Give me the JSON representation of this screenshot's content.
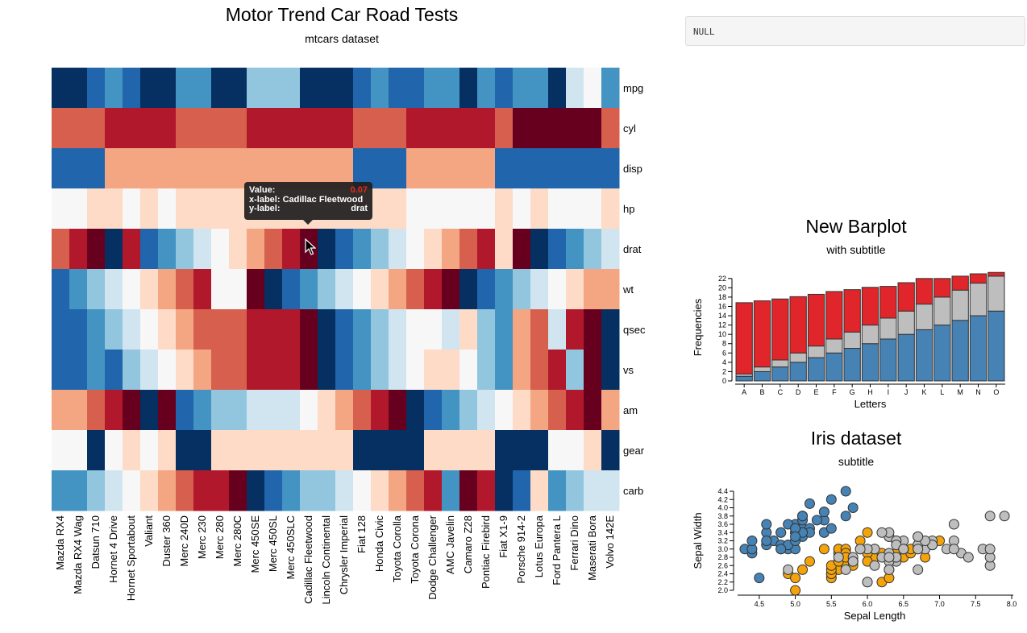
{
  "heatmap": {
    "title": "Motor Trend Car Road Tests",
    "subtitle": "mtcars dataset",
    "palette": [
      "#67001f",
      "#b2182b",
      "#d6604d",
      "#f4a582",
      "#fddbc7",
      "#f7f7f7",
      "#d1e5f0",
      "#92c5de",
      "#4393c3",
      "#2166ac",
      "#053061"
    ],
    "tooltip": {
      "value_label": "Value:",
      "value": "0.07",
      "x_label": "x-label:",
      "x_value": "Cadillac Fleetwood",
      "y_label": "y-label:",
      "y_value": "drat",
      "value_color": "#e8291c"
    }
  },
  "null_output": "NULL",
  "chart_data": [
    {
      "type": "heatmap",
      "title": "Motor Trend Car Road Tests",
      "subtitle": "mtcars dataset",
      "x": [
        "Mazda RX4",
        "Mazda RX4 Wag",
        "Datsun 710",
        "Hornet 4 Drive",
        "Hornet Sportabout",
        "Valiant",
        "Duster 360",
        "Merc 240D",
        "Merc 230",
        "Merc 280",
        "Merc 280C",
        "Merc 450SE",
        "Merc 450SL",
        "Merc 450SLC",
        "Cadillac Fleetwood",
        "Lincoln Continental",
        "Chrysler Imperial",
        "Fiat 128",
        "Honda Civic",
        "Toyota Corolla",
        "Toyota Corona",
        "Dodge Challenger",
        "AMC Javelin",
        "Camaro Z28",
        "Pontiac Firebird",
        "Fiat X1-9",
        "Porsche 914-2",
        "Lotus Europa",
        "Ford Pantera L",
        "Ferrari Dino",
        "Maserati Bora",
        "Volvo 142E"
      ],
      "y": [
        "mpg",
        "cyl",
        "disp",
        "hp",
        "drat",
        "wt",
        "qsec",
        "vs",
        "am",
        "gear",
        "carb"
      ],
      "color_levels": [
        [
          10,
          10,
          9,
          8,
          9,
          10,
          10,
          8,
          8,
          10,
          10,
          7,
          7,
          7,
          10,
          10,
          10,
          9,
          8,
          9,
          9,
          8,
          8,
          10,
          8,
          9,
          8,
          8,
          10,
          6,
          5,
          8
        ],
        [
          2,
          2,
          2,
          1,
          1,
          1,
          1,
          2,
          2,
          2,
          2,
          1,
          1,
          1,
          1,
          1,
          1,
          2,
          2,
          2,
          1,
          1,
          1,
          1,
          1,
          2,
          0,
          0,
          0,
          0,
          0,
          2
        ],
        [
          9,
          9,
          9,
          3,
          3,
          3,
          3,
          3,
          3,
          3,
          3,
          3,
          3,
          3,
          3,
          3,
          3,
          9,
          9,
          9,
          3,
          3,
          3,
          3,
          3,
          9,
          9,
          9,
          9,
          9,
          9,
          9
        ],
        [
          5,
          5,
          4,
          4,
          5,
          4,
          5,
          4,
          4,
          4,
          4,
          4,
          4,
          4,
          4,
          4,
          4,
          4,
          4,
          4,
          5,
          5,
          5,
          5,
          5,
          4,
          5,
          4,
          5,
          5,
          5,
          4
        ],
        [
          2,
          1,
          0,
          10,
          1,
          9,
          8,
          7,
          6,
          5,
          4,
          3,
          2,
          1,
          0,
          10,
          9,
          8,
          7,
          6,
          5,
          4,
          3,
          2,
          1,
          4,
          0,
          10,
          9,
          8,
          7,
          6
        ],
        [
          9,
          8,
          7,
          6,
          5,
          4,
          3,
          2,
          1,
          5,
          5,
          0,
          10,
          9,
          8,
          7,
          6,
          5,
          4,
          3,
          2,
          1,
          0,
          10,
          9,
          8,
          7,
          6,
          5,
          4,
          3,
          3
        ],
        [
          9,
          9,
          8,
          7,
          6,
          5,
          4,
          3,
          2,
          2,
          2,
          1,
          1,
          1,
          0,
          10,
          9,
          8,
          7,
          6,
          5,
          5,
          6,
          4,
          7,
          8,
          3,
          2,
          6,
          1,
          0,
          10
        ],
        [
          9,
          9,
          8,
          9,
          7,
          6,
          5,
          4,
          3,
          2,
          2,
          1,
          1,
          1,
          0,
          10,
          9,
          8,
          7,
          6,
          5,
          4,
          4,
          5,
          7,
          8,
          3,
          2,
          1,
          7,
          0,
          10
        ],
        [
          3,
          3,
          2,
          1,
          0,
          10,
          0,
          9,
          8,
          7,
          7,
          6,
          6,
          6,
          5,
          4,
          3,
          2,
          1,
          0,
          10,
          9,
          8,
          7,
          6,
          5,
          4,
          3,
          2,
          1,
          0,
          3
        ],
        [
          5,
          5,
          10,
          5,
          4,
          5,
          4,
          10,
          10,
          4,
          4,
          4,
          4,
          4,
          4,
          4,
          4,
          10,
          10,
          10,
          10,
          4,
          4,
          4,
          4,
          10,
          10,
          10,
          5,
          5,
          4,
          10
        ],
        [
          8,
          8,
          7,
          6,
          5,
          4,
          3,
          2,
          1,
          1,
          0,
          10,
          9,
          8,
          7,
          7,
          6,
          5,
          4,
          3,
          2,
          1,
          8,
          0,
          1,
          10,
          9,
          4,
          8,
          7,
          6,
          6
        ]
      ]
    },
    {
      "type": "bar",
      "title": "New Barplot",
      "subtitle": "with subtitle",
      "xlabel": "Letters",
      "ylabel": "Frequencies",
      "categories": [
        "A",
        "B",
        "C",
        "D",
        "E",
        "F",
        "G",
        "H",
        "I",
        "J",
        "K",
        "L",
        "M",
        "N",
        "O"
      ],
      "ylim": [
        0,
        23
      ],
      "yticks": [
        0,
        2,
        4,
        6,
        8,
        10,
        12,
        14,
        16,
        18,
        20,
        22
      ],
      "stacked": true,
      "series": [
        {
          "color": "#4682b4",
          "values": [
            1,
            2,
            3,
            4,
            5,
            6,
            7,
            8,
            9,
            10,
            11,
            12,
            13,
            14,
            15
          ]
        },
        {
          "color": "#bebebe",
          "values": [
            0.5,
            1,
            1.5,
            2,
            2.5,
            3,
            3.5,
            4,
            4.5,
            5,
            5.5,
            6,
            6.5,
            7,
            7.5
          ]
        },
        {
          "color": "#e0262a",
          "values": [
            15.3,
            14.2,
            13.1,
            12.1,
            11.1,
            10.2,
            9.1,
            8.1,
            6.8,
            6.1,
            5.5,
            4,
            3,
            2,
            0.8
          ]
        }
      ]
    },
    {
      "type": "scatter",
      "title": "Iris dataset",
      "subtitle": "subtitle",
      "xlabel": "Sepal Length",
      "ylabel": "Sepal Width",
      "xlim": [
        4.2,
        8.0
      ],
      "ylim": [
        2.0,
        4.4
      ],
      "xticks": [
        4.5,
        5.0,
        5.5,
        6.0,
        6.5,
        7.0,
        7.5,
        8.0
      ],
      "yticks": [
        2.0,
        2.2,
        2.4,
        2.6,
        2.8,
        3.0,
        3.2,
        3.4,
        3.6,
        3.8,
        4.0,
        4.2,
        4.4
      ],
      "series": [
        {
          "color": "#4682b4",
          "points": [
            [
              5.1,
              3.5
            ],
            [
              4.9,
              3.0
            ],
            [
              4.7,
              3.2
            ],
            [
              4.6,
              3.1
            ],
            [
              5.0,
              3.6
            ],
            [
              5.4,
              3.9
            ],
            [
              4.6,
              3.4
            ],
            [
              5.0,
              3.4
            ],
            [
              4.4,
              2.9
            ],
            [
              4.9,
              3.1
            ],
            [
              5.4,
              3.7
            ],
            [
              4.8,
              3.4
            ],
            [
              4.8,
              3.0
            ],
            [
              4.3,
              3.0
            ],
            [
              5.8,
              4.0
            ],
            [
              5.7,
              4.4
            ],
            [
              5.4,
              3.9
            ],
            [
              5.1,
              3.5
            ],
            [
              5.7,
              3.8
            ],
            [
              5.1,
              3.8
            ],
            [
              5.4,
              3.4
            ],
            [
              5.1,
              3.7
            ],
            [
              4.6,
              3.6
            ],
            [
              5.1,
              3.3
            ],
            [
              4.8,
              3.4
            ],
            [
              5.0,
              3.0
            ],
            [
              5.0,
              3.4
            ],
            [
              5.2,
              3.5
            ],
            [
              5.2,
              3.4
            ],
            [
              4.7,
              3.2
            ],
            [
              4.8,
              3.1
            ],
            [
              5.4,
              3.4
            ],
            [
              5.2,
              4.1
            ],
            [
              5.5,
              4.2
            ],
            [
              4.9,
              3.1
            ],
            [
              5.0,
              3.2
            ],
            [
              5.5,
              3.5
            ],
            [
              4.9,
              3.6
            ],
            [
              4.4,
              3.0
            ],
            [
              5.1,
              3.4
            ],
            [
              5.0,
              3.5
            ],
            [
              4.5,
              2.3
            ],
            [
              4.4,
              3.2
            ],
            [
              5.0,
              3.5
            ],
            [
              5.1,
              3.8
            ],
            [
              4.8,
              3.0
            ],
            [
              5.1,
              3.8
            ],
            [
              4.6,
              3.2
            ],
            [
              5.3,
              3.7
            ],
            [
              5.0,
              3.3
            ]
          ]
        },
        {
          "color": "#f5a30a",
          "points": [
            [
              7.0,
              3.2
            ],
            [
              6.4,
              3.2
            ],
            [
              6.9,
              3.1
            ],
            [
              5.5,
              2.3
            ],
            [
              6.5,
              2.8
            ],
            [
              5.7,
              2.8
            ],
            [
              6.3,
              3.3
            ],
            [
              4.9,
              2.4
            ],
            [
              6.6,
              2.9
            ],
            [
              5.2,
              2.7
            ],
            [
              5.0,
              2.0
            ],
            [
              5.9,
              3.0
            ],
            [
              6.0,
              2.2
            ],
            [
              6.1,
              2.9
            ],
            [
              5.6,
              2.9
            ],
            [
              6.7,
              3.1
            ],
            [
              5.6,
              3.0
            ],
            [
              5.8,
              2.7
            ],
            [
              6.2,
              2.2
            ],
            [
              5.6,
              2.5
            ],
            [
              5.9,
              3.2
            ],
            [
              6.1,
              2.8
            ],
            [
              6.3,
              2.5
            ],
            [
              6.1,
              2.8
            ],
            [
              6.4,
              2.9
            ],
            [
              6.6,
              3.0
            ],
            [
              6.8,
              2.8
            ],
            [
              6.7,
              3.0
            ],
            [
              6.0,
              2.9
            ],
            [
              5.7,
              2.6
            ],
            [
              5.5,
              2.4
            ],
            [
              5.5,
              2.4
            ],
            [
              5.8,
              2.7
            ],
            [
              6.0,
              2.7
            ],
            [
              5.4,
              3.0
            ],
            [
              6.0,
              3.4
            ],
            [
              6.7,
              3.1
            ],
            [
              6.3,
              2.3
            ],
            [
              5.6,
              3.0
            ],
            [
              5.5,
              2.5
            ],
            [
              5.5,
              2.6
            ],
            [
              6.1,
              3.0
            ],
            [
              5.8,
              2.6
            ],
            [
              5.0,
              2.3
            ],
            [
              5.6,
              2.7
            ],
            [
              5.7,
              3.0
            ],
            [
              5.7,
              2.9
            ],
            [
              6.2,
              2.9
            ],
            [
              5.1,
              2.5
            ],
            [
              5.7,
              2.8
            ]
          ]
        },
        {
          "color": "#bebebe",
          "points": [
            [
              6.3,
              3.3
            ],
            [
              5.8,
              2.7
            ],
            [
              7.1,
              3.0
            ],
            [
              6.3,
              2.9
            ],
            [
              6.5,
              3.0
            ],
            [
              7.6,
              3.0
            ],
            [
              4.9,
              2.5
            ],
            [
              7.3,
              2.9
            ],
            [
              6.7,
              2.5
            ],
            [
              7.2,
              3.6
            ],
            [
              6.5,
              3.2
            ],
            [
              6.4,
              2.7
            ],
            [
              6.8,
              3.0
            ],
            [
              5.7,
              2.5
            ],
            [
              5.8,
              2.8
            ],
            [
              6.4,
              3.2
            ],
            [
              6.5,
              3.0
            ],
            [
              7.7,
              3.8
            ],
            [
              7.7,
              2.6
            ],
            [
              6.0,
              2.2
            ],
            [
              6.9,
              3.2
            ],
            [
              5.6,
              2.8
            ],
            [
              7.7,
              2.8
            ],
            [
              6.3,
              2.7
            ],
            [
              6.7,
              3.3
            ],
            [
              7.2,
              3.2
            ],
            [
              6.2,
              2.8
            ],
            [
              6.1,
              3.0
            ],
            [
              6.4,
              2.8
            ],
            [
              7.2,
              3.0
            ],
            [
              7.4,
              2.8
            ],
            [
              7.9,
              3.8
            ],
            [
              6.4,
              2.8
            ],
            [
              6.3,
              2.8
            ],
            [
              6.1,
              2.6
            ],
            [
              7.7,
              3.0
            ],
            [
              6.3,
              3.4
            ],
            [
              6.4,
              3.1
            ],
            [
              6.0,
              3.0
            ],
            [
              6.9,
              3.1
            ],
            [
              6.7,
              3.1
            ],
            [
              6.9,
              3.1
            ],
            [
              5.8,
              2.7
            ],
            [
              6.8,
              3.2
            ],
            [
              6.7,
              3.3
            ],
            [
              6.7,
              3.0
            ],
            [
              6.3,
              2.5
            ],
            [
              6.5,
              3.0
            ],
            [
              6.2,
              3.4
            ],
            [
              5.9,
              3.0
            ]
          ]
        }
      ]
    }
  ]
}
